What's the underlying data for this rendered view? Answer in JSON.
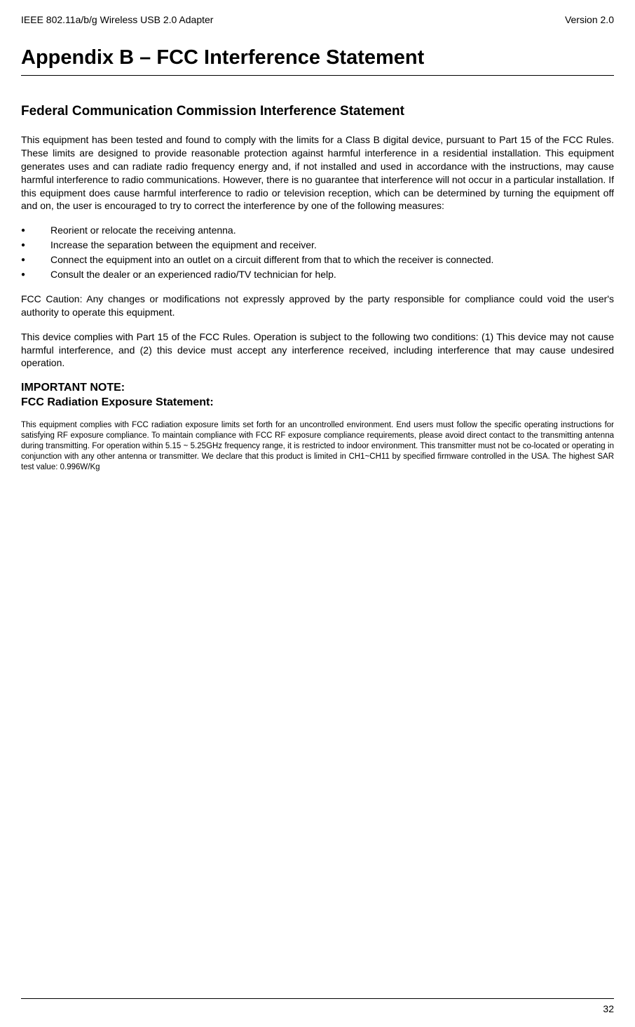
{
  "header": {
    "left": "IEEE 802.11a/b/g Wireless USB 2.0 Adapter",
    "right": "Version 2.0"
  },
  "title": "Appendix B – FCC Interference Statement",
  "section1": {
    "heading": "Federal Communication Commission Interference Statement",
    "para1": "This equipment has been tested and found to comply with the limits for a Class B digital device, pursuant to Part 15 of the FCC Rules.  These limits are designed to provide reasonable protection against harmful interference in a residential installation.  This equipment generates uses and can radiate radio frequency energy and, if not installed and used in accordance with the instructions, may cause harmful interference to radio communications.  However, there is no guarantee that interference will not occur in a particular installation.  If this equipment does cause harmful interference to radio or television reception, which can be determined by turning the equipment off and on, the user is encouraged to try to correct the interference by one of the following measures:",
    "bullets": [
      "Reorient or relocate the receiving antenna.",
      "Increase the separation between the equipment and receiver.",
      "Connect the equipment into an outlet on a circuit different from that to which the receiver is connected.",
      "Consult the dealer or an experienced radio/TV technician for help."
    ],
    "para2": "FCC Caution: Any changes or modifications not expressly approved by the party responsible for compliance could void the user's authority to operate this equipment.",
    "para3": "This device complies with Part 15 of the FCC Rules. Operation is subject to the following two conditions: (1) This device may not cause harmful interference, and (2) this device must accept any interference received, including interference that may cause undesired operation."
  },
  "section2": {
    "heading1": "IMPORTANT NOTE:",
    "heading2": "FCC Radiation Exposure Statement:",
    "small_para": "This equipment complies with FCC radiation exposure limits set forth for an uncontrolled environment. End users must follow the specific operating instructions for satisfying RF exposure compliance. To maintain compliance with FCC RF exposure compliance requirements, please avoid direct contact to the transmitting antenna during transmitting. For operation within 5.15 ~ 5.25GHz frequency range, it is restricted to indoor environment. This transmitter must not be co-located or operating in conjunction with any other antenna or transmitter. We declare that this product is limited in CH1~CH11 by specified firmware controlled in the USA. The highest SAR test value: 0.996W/Kg"
  },
  "page_number": "32"
}
